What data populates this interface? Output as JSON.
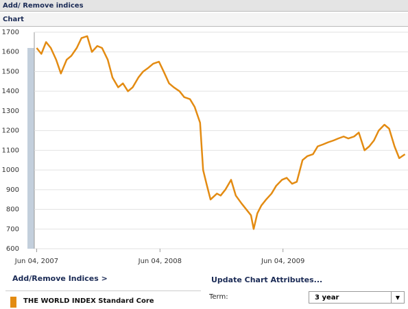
{
  "header": {
    "title": "Add/ Remove indices"
  },
  "panel": {
    "title": "Chart"
  },
  "chart_data": {
    "type": "line",
    "x": [
      "2007-06-04",
      "2007-06-18",
      "2007-07-02",
      "2007-07-16",
      "2007-08-01",
      "2007-08-15",
      "2007-09-01",
      "2007-09-15",
      "2007-10-01",
      "2007-10-15",
      "2007-11-01",
      "2007-11-15",
      "2007-12-01",
      "2007-12-15",
      "2008-01-01",
      "2008-01-15",
      "2008-02-01",
      "2008-02-15",
      "2008-03-01",
      "2008-03-15",
      "2008-04-01",
      "2008-04-15",
      "2008-05-01",
      "2008-05-15",
      "2008-06-01",
      "2008-06-15",
      "2008-07-01",
      "2008-07-15",
      "2008-08-01",
      "2008-08-15",
      "2008-09-01",
      "2008-09-15",
      "2008-10-01",
      "2008-10-10",
      "2008-10-20",
      "2008-11-01",
      "2008-11-20",
      "2008-12-01",
      "2008-12-15",
      "2009-01-01",
      "2009-01-15",
      "2009-02-01",
      "2009-02-15",
      "2009-03-01",
      "2009-03-09",
      "2009-03-20",
      "2009-04-01",
      "2009-04-15",
      "2009-05-01",
      "2009-05-15",
      "2009-06-01",
      "2009-06-15",
      "2009-07-01",
      "2009-07-15",
      "2009-08-01",
      "2009-08-15",
      "2009-09-01",
      "2009-09-15",
      "2009-10-01",
      "2009-10-15",
      "2009-11-01",
      "2009-11-15",
      "2009-12-01",
      "2009-12-15",
      "2010-01-01",
      "2010-01-15",
      "2010-02-01",
      "2010-02-15",
      "2010-03-01",
      "2010-03-15",
      "2010-04-01",
      "2010-04-15",
      "2010-05-01",
      "2010-05-15",
      "2010-06-01"
    ],
    "series": [
      {
        "name": "THE WORLD INDEX Standard Core",
        "color": "#e38b12",
        "values": [
          1620,
          1590,
          1650,
          1620,
          1560,
          1490,
          1560,
          1580,
          1620,
          1670,
          1680,
          1600,
          1630,
          1620,
          1560,
          1470,
          1420,
          1440,
          1400,
          1420,
          1470,
          1500,
          1520,
          1540,
          1550,
          1500,
          1440,
          1420,
          1400,
          1370,
          1360,
          1320,
          1240,
          1000,
          930,
          850,
          880,
          870,
          900,
          950,
          870,
          830,
          800,
          770,
          700,
          780,
          820,
          850,
          880,
          920,
          950,
          960,
          930,
          940,
          1050,
          1070,
          1080,
          1120,
          1130,
          1140,
          1150,
          1160,
          1170,
          1160,
          1170,
          1190,
          1100,
          1120,
          1150,
          1200,
          1230,
          1210,
          1120,
          1060,
          1080
        ]
      }
    ],
    "xlim": [
      "2007-05-28",
      "2010-06-10"
    ],
    "xticks": [
      {
        "value": "2007-06-04",
        "label": "Jun 04, 2007"
      },
      {
        "value": "2008-06-04",
        "label": "Jun 04, 2008"
      },
      {
        "value": "2009-06-04",
        "label": "Jun 04, 2009"
      }
    ],
    "ylim": [
      600,
      1700
    ],
    "yticks": [
      600,
      700,
      800,
      900,
      1000,
      1100,
      1200,
      1300,
      1400,
      1500,
      1600,
      1700
    ],
    "grid": true
  },
  "controls": {
    "add_remove": "Add/Remove Indices >",
    "update": "Update Chart Attributes...",
    "term_label": "Term:",
    "term_value": "3 year"
  }
}
